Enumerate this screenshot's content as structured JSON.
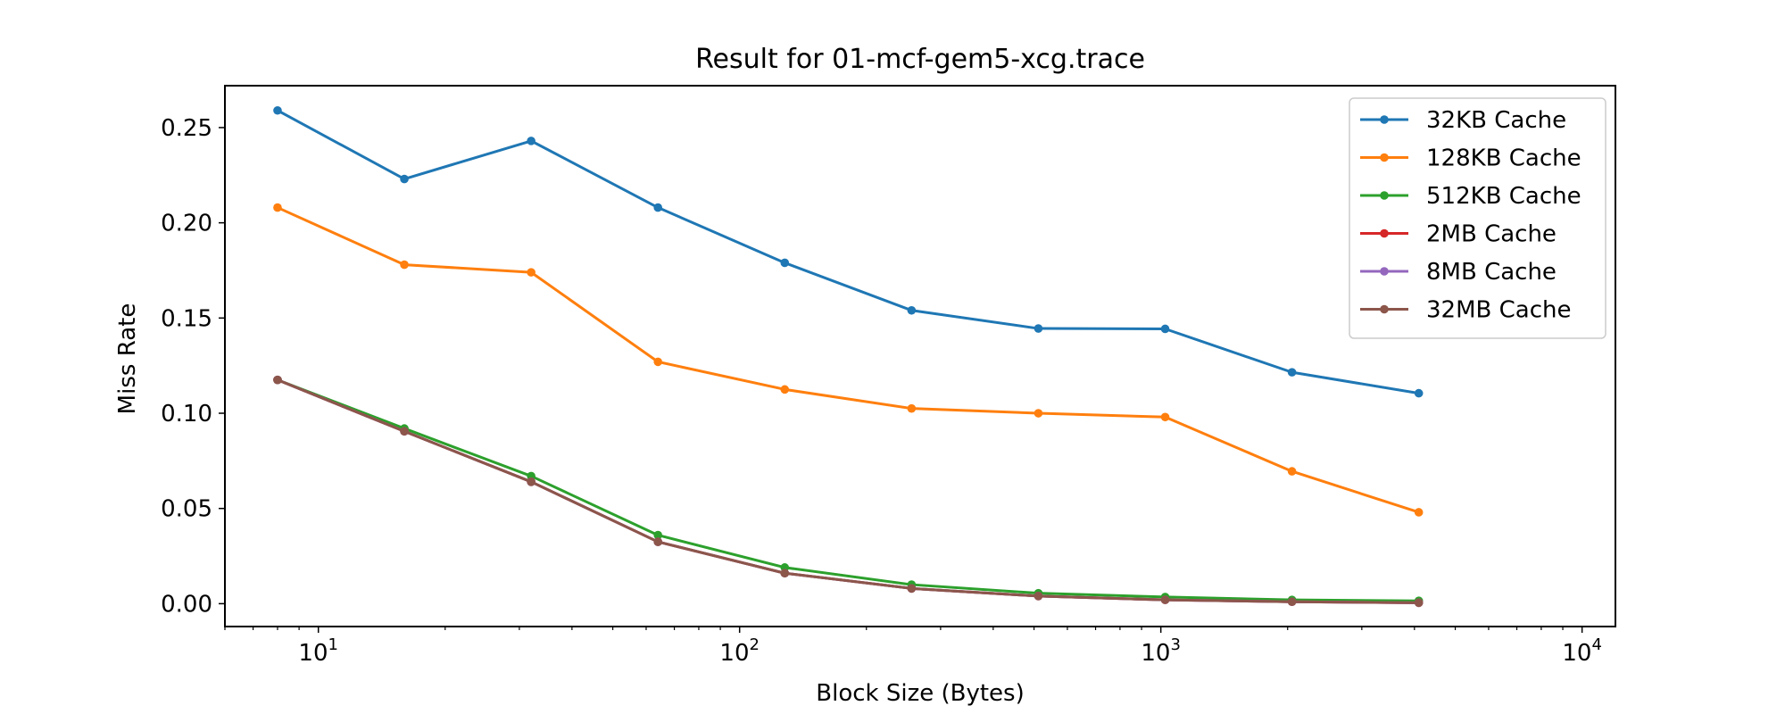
{
  "chart_data": {
    "type": "line",
    "title": "Result for 01-mcf-gem5-xcg.trace",
    "xlabel": "Block Size (Bytes)",
    "ylabel": "Miss Rate",
    "xscale": "log",
    "xlim": [
      6,
      12000
    ],
    "ylim": [
      -0.012,
      0.272
    ],
    "x_ticks": [
      {
        "value": 10,
        "base": "10",
        "exp": "1"
      },
      {
        "value": 100,
        "base": "10",
        "exp": "2"
      },
      {
        "value": 1000,
        "base": "10",
        "exp": "3"
      },
      {
        "value": 10000,
        "base": "10",
        "exp": "4"
      }
    ],
    "y_ticks": [
      {
        "value": 0.0,
        "label": "0.00"
      },
      {
        "value": 0.05,
        "label": "0.05"
      },
      {
        "value": 0.1,
        "label": "0.10"
      },
      {
        "value": 0.15,
        "label": "0.15"
      },
      {
        "value": 0.2,
        "label": "0.20"
      },
      {
        "value": 0.25,
        "label": "0.25"
      }
    ],
    "grid": false,
    "legend_position": "top-right",
    "x": [
      8,
      16,
      32,
      64,
      128,
      256,
      512,
      1024,
      2048,
      4096
    ],
    "series": [
      {
        "name": "32KB Cache",
        "color": "#1f77b4",
        "values": [
          0.259,
          0.223,
          0.243,
          0.208,
          0.179,
          0.154,
          0.1445,
          0.1443,
          0.1215,
          0.1105
        ]
      },
      {
        "name": "128KB Cache",
        "color": "#ff7f0e",
        "values": [
          0.208,
          0.178,
          0.174,
          0.127,
          0.1125,
          0.1025,
          0.1,
          0.098,
          0.0695,
          0.048
        ]
      },
      {
        "name": "512KB Cache",
        "color": "#2ca02c",
        "values": [
          0.1175,
          0.092,
          0.067,
          0.036,
          0.019,
          0.01,
          0.0055,
          0.0035,
          0.002,
          0.0015
        ]
      },
      {
        "name": "2MB Cache",
        "color": "#d62728",
        "values": [
          0.1175,
          0.0905,
          0.064,
          0.0325,
          0.016,
          0.008,
          0.004,
          0.002,
          0.001,
          0.0005
        ]
      },
      {
        "name": "8MB Cache",
        "color": "#9467bd",
        "values": [
          0.1175,
          0.0905,
          0.064,
          0.0325,
          0.016,
          0.008,
          0.004,
          0.002,
          0.001,
          0.0005
        ]
      },
      {
        "name": "32MB Cache",
        "color": "#8c564b",
        "values": [
          0.1175,
          0.0905,
          0.064,
          0.0325,
          0.016,
          0.008,
          0.004,
          0.002,
          0.001,
          0.0005
        ]
      }
    ]
  }
}
